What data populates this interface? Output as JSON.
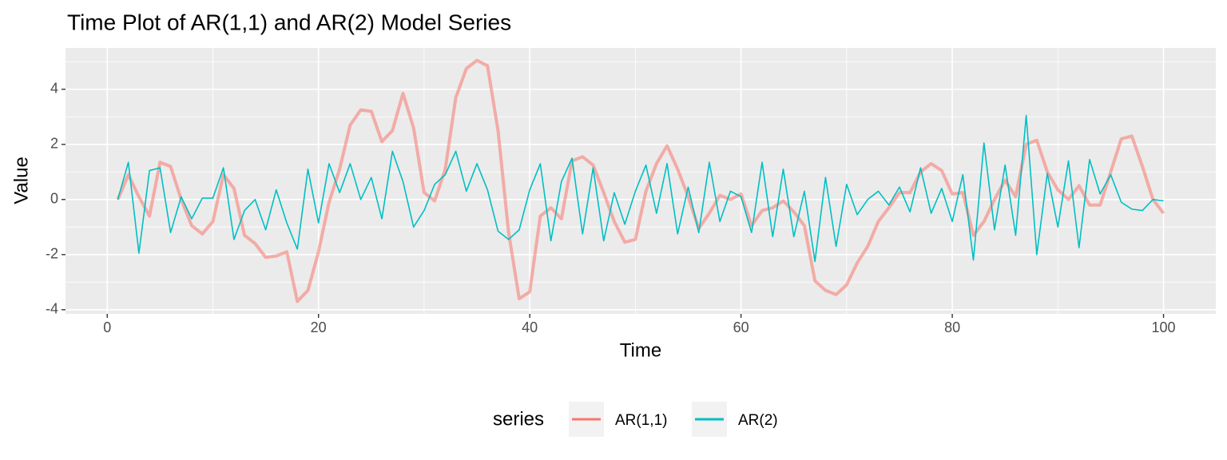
{
  "chart_data": {
    "type": "line",
    "title": "Time Plot of AR(1,1) and AR(2) Model Series",
    "x_label": "Time",
    "y_label": "Value",
    "legend_title": "series",
    "legend": "bottom",
    "grid": true,
    "x": [
      1,
      2,
      3,
      4,
      5,
      6,
      7,
      8,
      9,
      10,
      11,
      12,
      13,
      14,
      15,
      16,
      17,
      18,
      19,
      20,
      21,
      22,
      23,
      24,
      25,
      26,
      27,
      28,
      29,
      30,
      31,
      32,
      33,
      34,
      35,
      36,
      37,
      38,
      39,
      40,
      41,
      42,
      43,
      44,
      45,
      46,
      47,
      48,
      49,
      50,
      51,
      52,
      53,
      54,
      55,
      56,
      57,
      58,
      59,
      60,
      61,
      62,
      63,
      64,
      65,
      66,
      67,
      68,
      69,
      70,
      71,
      72,
      73,
      74,
      75,
      76,
      77,
      78,
      79,
      80,
      81,
      82,
      83,
      84,
      85,
      86,
      87,
      88,
      89,
      90,
      91,
      92,
      93,
      94,
      95,
      96,
      97,
      98,
      99,
      100
    ],
    "series": [
      {
        "name": "AR(1,1)",
        "color": "#F8766D",
        "values": [
          0.0,
          0.9,
          0.1,
          -0.6,
          1.35,
          1.2,
          0.0,
          -0.95,
          -1.25,
          -0.8,
          0.9,
          0.4,
          -1.3,
          -1.6,
          -2.1,
          -2.05,
          -1.9,
          -3.7,
          -3.3,
          -1.9,
          -0.1,
          1.1,
          2.7,
          3.25,
          3.2,
          2.1,
          2.5,
          3.85,
          2.6,
          0.25,
          -0.05,
          1.1,
          3.7,
          4.75,
          5.05,
          4.85,
          2.5,
          -1.2,
          -3.6,
          -3.35,
          -0.6,
          -0.3,
          -0.7,
          1.4,
          1.55,
          1.25,
          0.25,
          -0.8,
          -1.55,
          -1.45,
          0.3,
          1.3,
          1.95,
          1.1,
          0.1,
          -1.05,
          -0.5,
          0.15,
          0.0,
          0.2,
          -0.95,
          -0.4,
          -0.3,
          -0.05,
          -0.45,
          -0.95,
          -2.95,
          -3.3,
          -3.45,
          -3.1,
          -2.3,
          -1.7,
          -0.8,
          -0.3,
          0.25,
          0.25,
          1.0,
          1.3,
          1.05,
          0.2,
          0.25,
          -1.3,
          -0.8,
          0.0,
          0.7,
          0.1,
          2.0,
          2.15,
          1.0,
          0.35,
          0.0,
          0.5,
          -0.2,
          -0.2,
          1.0,
          2.2,
          2.3,
          1.2,
          0.0,
          -0.5
        ]
      },
      {
        "name": "AR(2)",
        "color": "#00BFC4",
        "values": [
          0.0,
          1.35,
          -1.95,
          1.05,
          1.15,
          -1.2,
          0.1,
          -0.7,
          0.05,
          0.05,
          1.15,
          -1.45,
          -0.4,
          0.0,
          -1.1,
          0.35,
          -0.85,
          -1.8,
          1.1,
          -0.85,
          1.3,
          0.25,
          1.3,
          0.0,
          0.8,
          -0.7,
          1.75,
          0.65,
          -1.0,
          -0.4,
          0.55,
          0.9,
          1.75,
          0.3,
          1.3,
          0.35,
          -1.15,
          -1.45,
          -1.1,
          0.35,
          1.3,
          -1.5,
          0.65,
          1.5,
          -1.25,
          1.15,
          -1.5,
          0.25,
          -0.9,
          0.3,
          1.25,
          -0.5,
          1.3,
          -1.25,
          0.45,
          -1.2,
          1.35,
          -0.8,
          0.3,
          0.1,
          -1.2,
          1.35,
          -1.35,
          1.1,
          -1.35,
          0.3,
          -2.25,
          0.8,
          -1.7,
          0.55,
          -0.55,
          0.0,
          0.3,
          -0.2,
          0.45,
          -0.45,
          1.15,
          -0.5,
          0.4,
          -0.8,
          0.9,
          -2.2,
          2.05,
          -1.1,
          1.25,
          -1.3,
          3.05,
          -2.0,
          0.95,
          -1.0,
          1.4,
          -1.75,
          1.45,
          0.2,
          0.9,
          -0.1,
          -0.35,
          -0.4,
          0.0,
          -0.05
        ]
      }
    ],
    "xlim": [
      -3.95,
      104.95
    ],
    "xticks": [
      0,
      20,
      40,
      60,
      80,
      100
    ],
    "ylim": [
      -4.15,
      5.5
    ],
    "yticks": [
      -4,
      -2,
      0,
      2,
      4
    ]
  }
}
